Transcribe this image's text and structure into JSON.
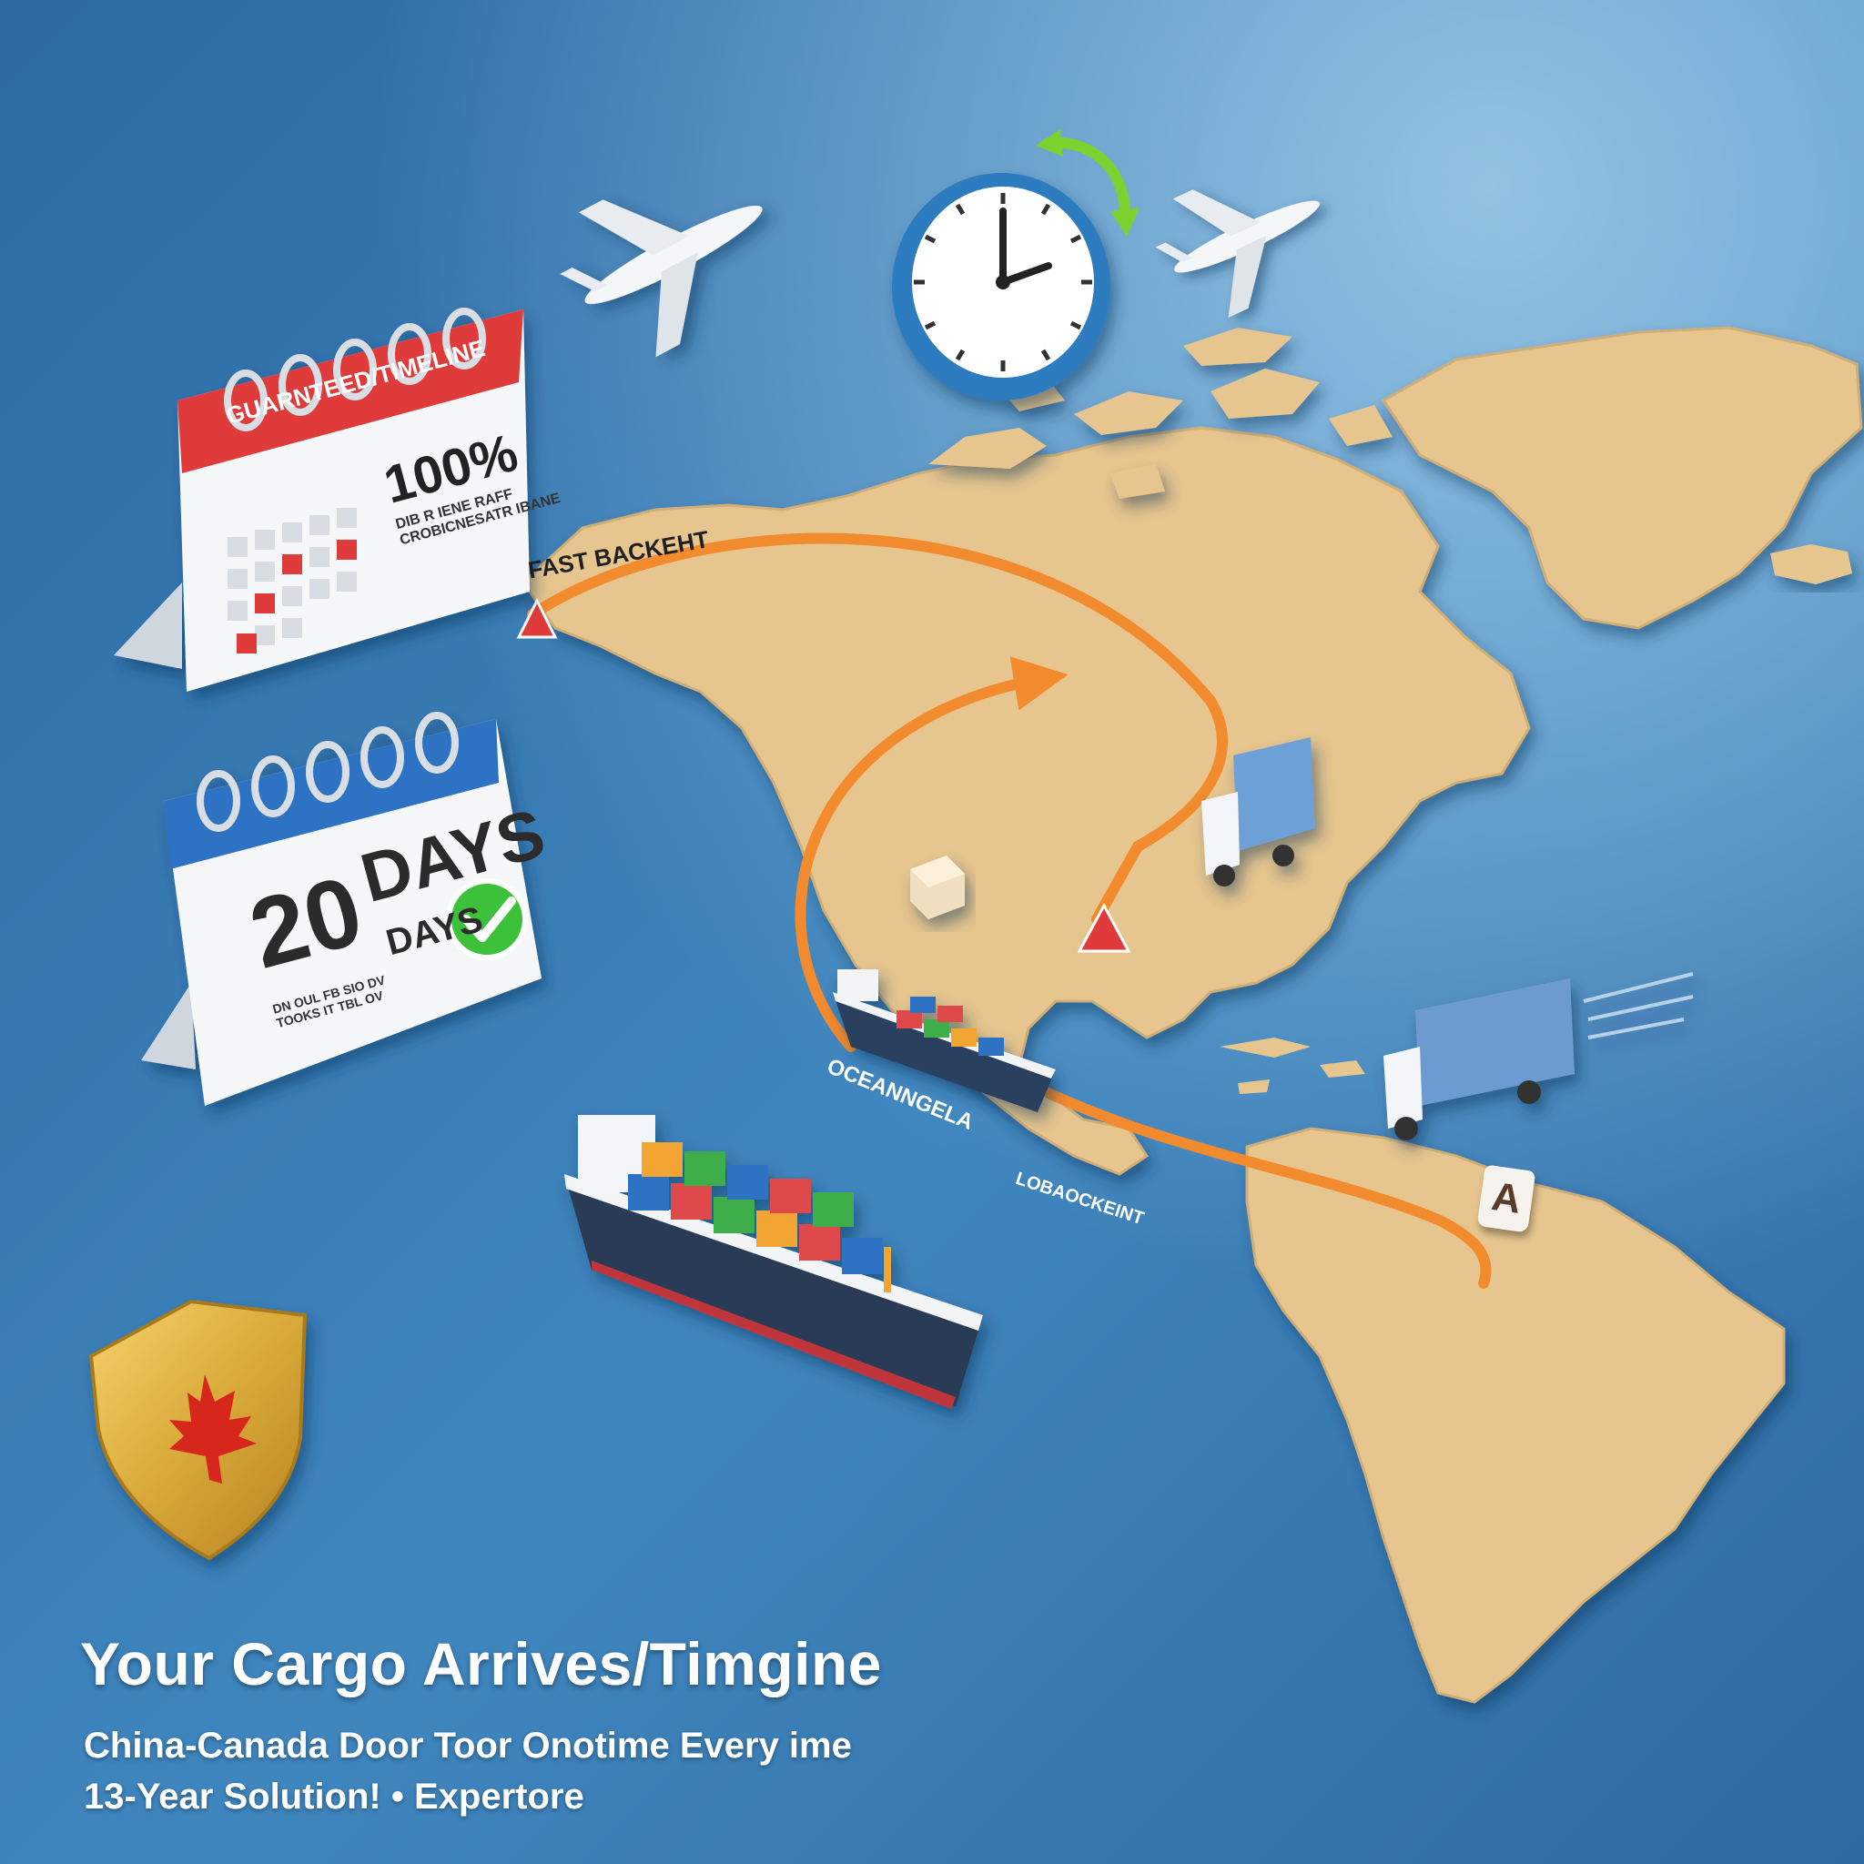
{
  "colors": {
    "ocean": "#2f6fa8",
    "land": "#e6c58e",
    "route": "#f28a2e",
    "calendar_red": "#e03a3a",
    "calendar_blue": "#2f72c4",
    "check_green": "#3cc13b",
    "shield_gold": "#d9a93a",
    "maple_red": "#d7261e"
  },
  "calendar_top": {
    "header": "GUARNTEED/TIMELINE",
    "percent": "100%",
    "caption_line1": "DIB R IENE RAFF",
    "caption_line2": "CROBICNESATR IBANE"
  },
  "calendar_bottom": {
    "number": "20",
    "days_big": "DAYS",
    "days_small": "DAYS",
    "caption_line1": "DN OUL FB SIO DV",
    "caption_line2": "TOOKS IT TBL OV"
  },
  "map_labels": {
    "route_top": "FAST BACKEHT",
    "ocean": "OCEANNGELA",
    "route_bottom": "LOBAOCKEINT",
    "marker": "A"
  },
  "icons": [
    "airplane-icon",
    "clock-icon",
    "truck-icon",
    "cargo-ship-icon",
    "shield-icon",
    "maple-leaf-icon",
    "check-icon",
    "package-icon"
  ],
  "headline": "Your Cargo Arrives/Timgine",
  "subline1": "China-Canada Door Toor Onotime Every ime",
  "subline2": "13-Year Solution! • Expertore"
}
